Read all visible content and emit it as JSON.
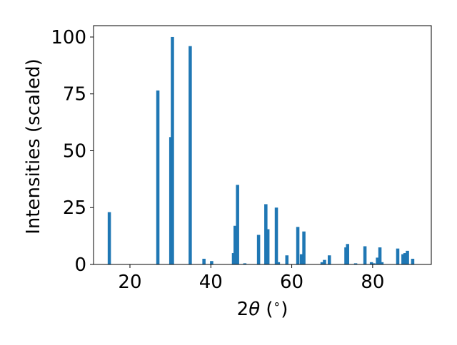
{
  "chart_data": {
    "type": "bar",
    "xlabel": "2θ (°)",
    "xlabel_parts": {
      "pre": "2",
      "theta": "θ",
      "mid": " (",
      "deg": "∘",
      "post": ")"
    },
    "ylabel": "Intensities (scaled)",
    "xlim": [
      11,
      94.5
    ],
    "ylim": [
      0,
      105
    ],
    "xticks": [
      20,
      40,
      60,
      80
    ],
    "yticks": [
      0,
      25,
      50,
      75,
      100
    ],
    "grid": false,
    "bar_color": "#1f77b4",
    "bar_width": 0.8,
    "x": [
      14.9,
      26.9,
      30.1,
      30.5,
      34.9,
      38.3,
      40.2,
      45.6,
      46.0,
      46.6,
      48.4,
      51.8,
      53.6,
      54.1,
      56.2,
      56.7,
      58.8,
      61.5,
      62.4,
      63.0,
      67.5,
      68.1,
      69.3,
      73.4,
      73.8,
      75.8,
      78.1,
      79.7,
      80.3,
      81.2,
      81.8,
      82.3,
      86.2,
      87.5,
      88.0,
      88.6,
      89.9
    ],
    "values": [
      23,
      76.5,
      56,
      100,
      96,
      2.5,
      1.5,
      5,
      17,
      35,
      0.5,
      13,
      26.5,
      15.5,
      25,
      1,
      4,
      16.5,
      4.5,
      14.5,
      1,
      2,
      4,
      7.5,
      9,
      0.5,
      8,
      1,
      0.5,
      3,
      7.5,
      1,
      7,
      4.5,
      5,
      6,
      2.5
    ]
  }
}
